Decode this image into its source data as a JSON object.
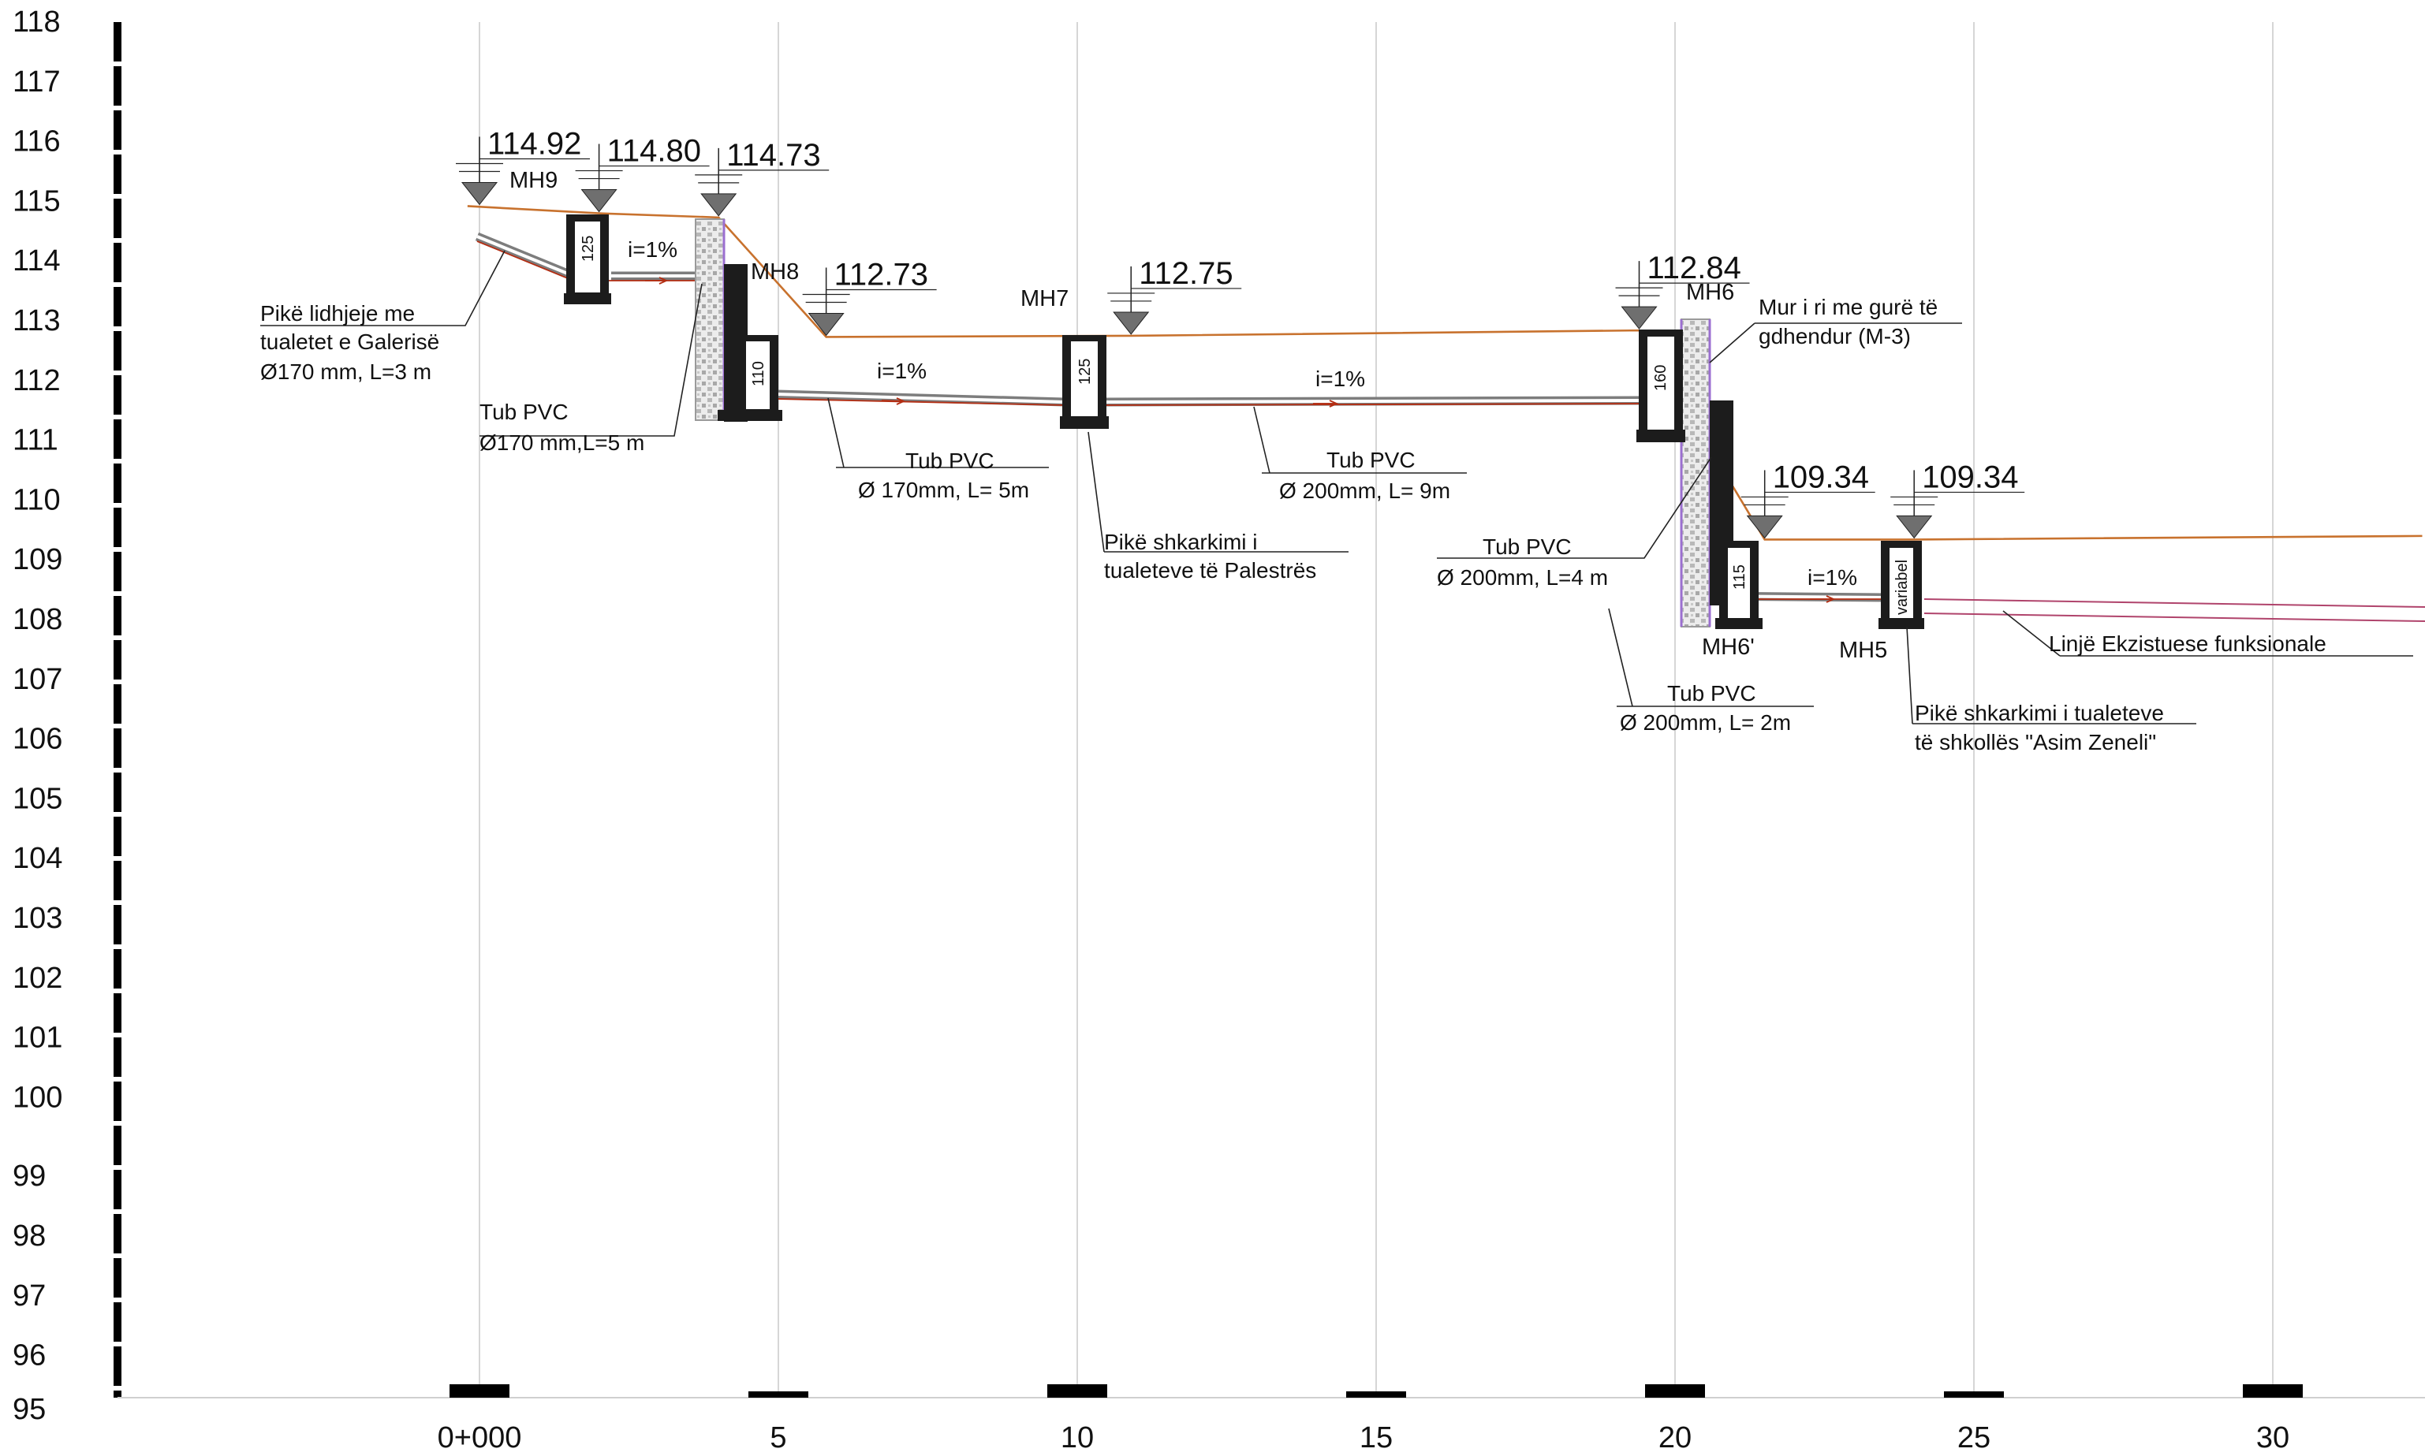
{
  "y_axis": {
    "ticks": [
      "118",
      "117",
      "116",
      "115",
      "114",
      "113",
      "112",
      "111",
      "110",
      "109",
      "108",
      "107",
      "106",
      "105",
      "104",
      "103",
      "102",
      "101",
      "100",
      "99",
      "98",
      "97",
      "96",
      "95"
    ]
  },
  "x_axis": {
    "ticks": [
      "0+000",
      "5",
      "10",
      "15",
      "20",
      "25",
      "30"
    ]
  },
  "elevations": [
    {
      "station": 0.0,
      "text": "114.92"
    },
    {
      "station": 2.0,
      "text": "114.80"
    },
    {
      "station": 4.0,
      "text": "114.73"
    },
    {
      "station": 5.8,
      "text": "112.73"
    },
    {
      "station": 10.9,
      "text": "112.75"
    },
    {
      "station": 19.4,
      "text": "112.84"
    },
    {
      "station": 21.5,
      "text": "109.34"
    },
    {
      "station": 24.0,
      "text": "109.34"
    }
  ],
  "manholes": [
    {
      "name": "MH9",
      "size": "125"
    },
    {
      "name": "MH8",
      "size": "110"
    },
    {
      "name": "MH7",
      "size": "125"
    },
    {
      "name": "MH6",
      "size": "160"
    },
    {
      "name": "MH6'",
      "size": "115"
    },
    {
      "name": "MH5",
      "size": "variabel"
    }
  ],
  "slopes": [
    "i=1%",
    "i=1%",
    "i=1%",
    "i=1%"
  ],
  "annotations": {
    "connection_point": [
      "Pikë lidhjeje me",
      "tualetet e Galerisë",
      "Ø170 mm, L=3 m"
    ],
    "pipe_1": [
      "Tub PVC",
      "Ø170 mm,L=5 m"
    ],
    "pipe_2": [
      "Tub PVC",
      "Ø 170mm, L= 5m"
    ],
    "discharge_palestra": [
      "Pikë shkarkimi i",
      "tualeteve të Palestrës"
    ],
    "pipe_3": [
      "Tub PVC",
      "Ø 200mm, L= 9m"
    ],
    "stone_wall": [
      "Mur i ri me gurë të",
      "gdhendur (M-3)"
    ],
    "pipe_4": [
      "Tub PVC",
      "Ø 200mm, L=4 m"
    ],
    "pipe_5": [
      "Tub PVC",
      "Ø 200mm, L= 2m"
    ],
    "discharge_school": [
      "Pikë shkarkimi i tualeteve",
      "të shkollës \"Asim Zeneli\""
    ],
    "existing_line": "Linjë Ekzistuese funksionale"
  },
  "chart_data": {
    "type": "line",
    "xlim": [
      -6,
      32.5
    ],
    "ylim": [
      95,
      118
    ],
    "series": [
      {
        "x": [
          -0.2,
          2.0,
          4.0,
          5.8,
          10.9,
          19.4,
          21.5,
          24.0,
          32.5
        ],
        "y": [
          114.92,
          114.8,
          114.73,
          112.73,
          112.75,
          112.84,
          109.34,
          109.34,
          109.4
        ]
      }
    ]
  },
  "colors": {
    "ground": "#c8722e",
    "pipe": "#5a5a5a",
    "flow": "#b32d12",
    "existing": "#b0446c",
    "manhole": "#1c1c1c",
    "wall_edge": "#9b6fd0"
  }
}
